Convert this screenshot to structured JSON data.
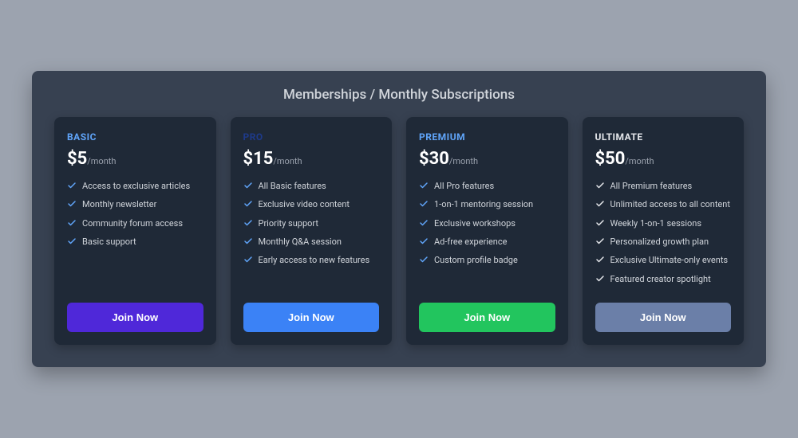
{
  "header": {
    "title": "Memberships / Monthly Subscriptions"
  },
  "colors": {
    "page_bg": "#9ca3af",
    "panel_bg": "#374151",
    "card_bg": "#1f2937",
    "text_light": "#d1d5db",
    "text_muted": "#9ca3af",
    "text_white": "#ffffff"
  },
  "tiers": [
    {
      "name": "BASIC",
      "name_color": "#60a5fa",
      "price": "$5",
      "period": "/month",
      "check_color": "#60a5fa",
      "button_label": "Join Now",
      "button_bg": "#4f28d9",
      "features": [
        "Access to exclusive articles",
        "Monthly newsletter",
        "Community forum access",
        "Basic support"
      ]
    },
    {
      "name": "PRO",
      "name_color": "#1e3a8a",
      "price": "$15",
      "period": "/month",
      "check_color": "#60a5fa",
      "button_label": "Join Now",
      "button_bg": "#3b82f6",
      "features": [
        "All Basic features",
        "Exclusive video content",
        "Priority support",
        "Monthly Q&A session",
        "Early access to new features"
      ]
    },
    {
      "name": "PREMIUM",
      "name_color": "#60a5fa",
      "price": "$30",
      "period": "/month",
      "check_color": "#60a5fa",
      "button_label": "Join Now",
      "button_bg": "#22c55e",
      "features": [
        "All Pro features",
        "1-on-1 mentoring session",
        "Exclusive workshops",
        "Ad-free experience",
        "Custom profile badge"
      ]
    },
    {
      "name": "ULTIMATE",
      "name_color": "#e5e7eb",
      "price": "$50",
      "period": "/month",
      "check_color": "#e5e7eb",
      "button_label": "Join Now",
      "button_bg": "#6b7fa8",
      "features": [
        "All Premium features",
        "Unlimited access to all content",
        "Weekly 1-on-1 sessions",
        "Personalized growth plan",
        "Exclusive Ultimate-only events",
        "Featured creator spotlight"
      ]
    }
  ]
}
